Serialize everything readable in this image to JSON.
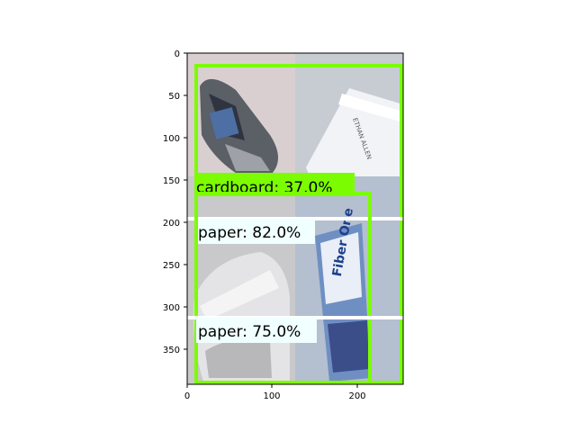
{
  "axes": {
    "x_ticks": [
      "0",
      "100",
      "200"
    ],
    "y_ticks": [
      "0",
      "50",
      "100",
      "150",
      "200",
      "250",
      "300",
      "350"
    ]
  },
  "image_tiles": [
    {
      "name": "crushed-bottle-tile",
      "color": "#cfc8c9"
    },
    {
      "name": "envelope-tile",
      "color": "#c9ccd3"
    },
    {
      "name": "plastic-bag-tile",
      "color": "#c8c8ca"
    },
    {
      "name": "fiber-one-wrapper-tile",
      "color": "#aab8cc"
    }
  ],
  "detections": [
    {
      "label": "cardboard: 37.0%",
      "box_color": "#7cfc00",
      "label_bg": "#7cfc00"
    },
    {
      "label": "paper: 82.0%",
      "box_color": "#7cfc00",
      "label_bg": "#f0ffff"
    },
    {
      "label": "paper: 75.0%",
      "box_color": "#7cfc00",
      "label_bg": "#f0ffff"
    }
  ],
  "object_text": {
    "wrapper_brand": "Fiber One",
    "envelope_print": "ETHAN ALLEN"
  }
}
